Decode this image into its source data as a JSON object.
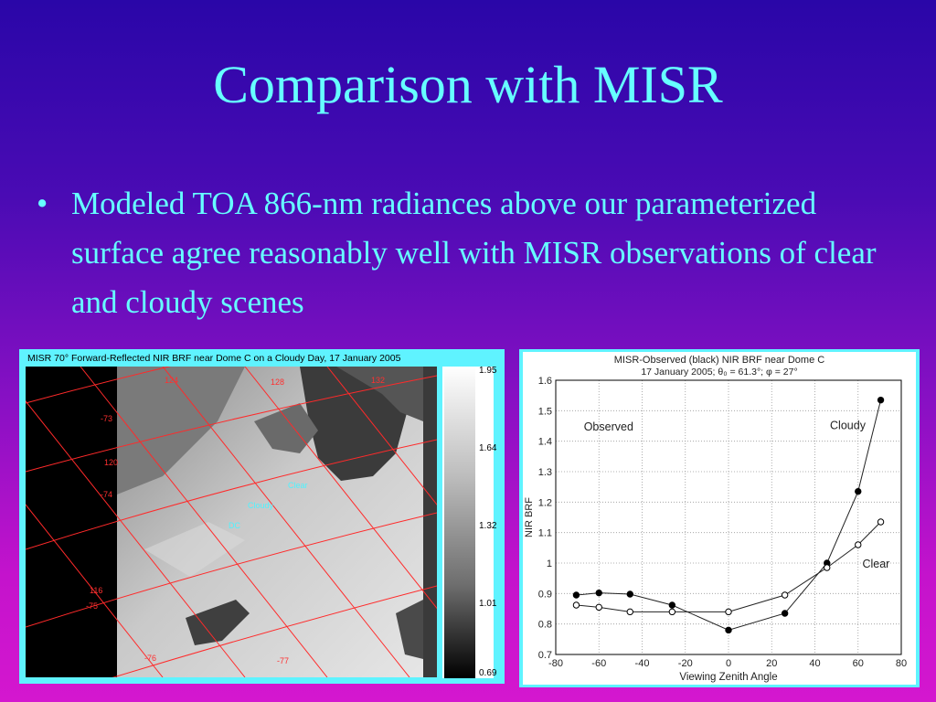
{
  "slide": {
    "title": "Comparison with MISR",
    "bullet": "Modeled TOA 866-nm radiances above our parameterized surface agree reasonably well with MISR observations of clear and cloudy scenes"
  },
  "map": {
    "title": "MISR 70° Forward-Reflected NIR BRF near Dome C on a Cloudy Day, 17 January 2005",
    "colorbar_ticks": [
      "1.95",
      "1.64",
      "1.32",
      "1.01",
      "0.69"
    ],
    "labels": {
      "clear": "Clear",
      "cloudy": "Cloudy",
      "dc": "DC"
    },
    "grid_labels": [
      "-73",
      "-74",
      "-75",
      "-76",
      "-77",
      "120",
      "116",
      "124",
      "128",
      "132"
    ]
  },
  "chart_data": {
    "type": "line",
    "title": "MISR-Observed (black) NIR BRF near Dome C",
    "subtitle": "17 January 2005; θ₀ = 61.3°; φ = 27°",
    "xlabel": "Viewing Zenith Angle",
    "ylabel": "NIR BRF",
    "xlim": [
      -80,
      80
    ],
    "ylim": [
      0.7,
      1.6
    ],
    "x_ticks": [
      "-80",
      "-60",
      "-40",
      "-20",
      "0",
      "20",
      "40",
      "60",
      "80"
    ],
    "y_ticks": [
      "1.6",
      "1.5",
      "1.4",
      "1.3",
      "1.2",
      "1.1",
      "1",
      "0.9",
      "0.8",
      "0.7"
    ],
    "grid": true,
    "annotations": {
      "observed": "Observed",
      "cloudy": "Cloudy",
      "clear": "Clear"
    },
    "series": [
      {
        "name": "Cloudy",
        "marker": "filled",
        "x": [
          -70.5,
          -60,
          -45.6,
          -26.1,
          0,
          26.1,
          45.6,
          60,
          70.5
        ],
        "y": [
          0.895,
          0.902,
          0.898,
          0.862,
          0.78,
          0.835,
          1.0,
          1.235,
          1.535
        ]
      },
      {
        "name": "Clear",
        "marker": "open",
        "x": [
          -70.5,
          -60,
          -45.6,
          -26.1,
          0,
          26.1,
          45.6,
          60,
          70.5
        ],
        "y": [
          0.862,
          0.855,
          0.84,
          0.84,
          0.84,
          0.895,
          0.985,
          1.06,
          1.135
        ]
      }
    ]
  }
}
